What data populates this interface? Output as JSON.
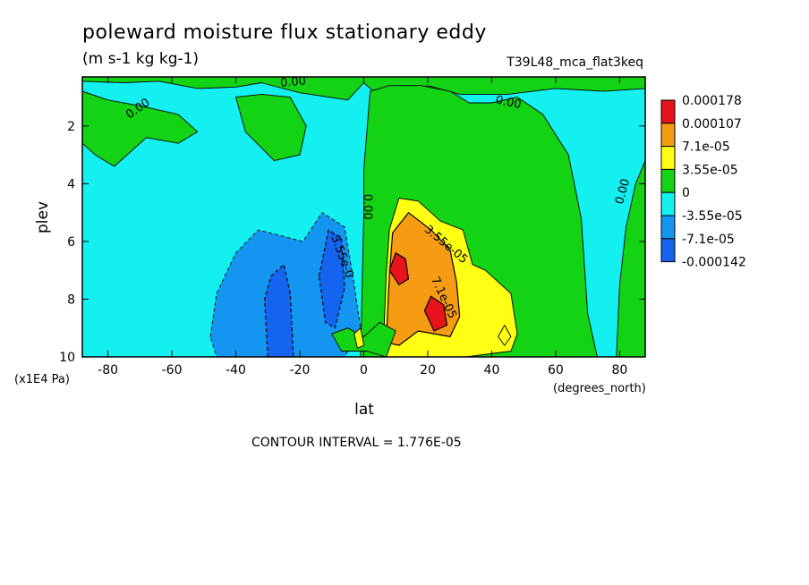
{
  "title": "poleward moisture flux stationary eddy",
  "units": "(m s-1 kg kg-1)",
  "run_label": "T39L48_mca_flat3keq",
  "contour_interval_text": "CONTOUR INTERVAL = 1.776E-05",
  "chart_data": {
    "type": "contour",
    "xlabel": "lat",
    "xunits": "(degrees_north)",
    "ylabel": "plev",
    "yunits": "(x1E4 Pa)",
    "xlim": [
      -88,
      88
    ],
    "ylim": [
      0.3,
      10
    ],
    "y_inverted": true,
    "xticks": [
      -80,
      -60,
      -40,
      -20,
      0,
      20,
      40,
      60,
      80
    ],
    "xtick_labels": [
      "-80",
      "-60",
      "-40",
      "-20",
      "0",
      "20",
      "40",
      "60",
      "80"
    ],
    "yticks": [
      2,
      4,
      6,
      8,
      10
    ],
    "ytick_labels": [
      "2",
      "4",
      "6",
      "8",
      "10"
    ],
    "colorbar": {
      "labels": [
        "0.000178",
        "0.000107",
        "7.1e-05",
        "3.55e-05",
        "0",
        "-3.55e-05",
        "-7.1e-05",
        "-0.000142"
      ],
      "colors": [
        "#e8141b",
        "#f59c14",
        "#ffff14",
        "#14d214",
        "#14f0f0",
        "#1496f0",
        "#1464f0"
      ]
    },
    "contour_labels": [
      {
        "text": "0.00",
        "x": -22,
        "y": 0.6,
        "angle": -5
      },
      {
        "text": "0.00",
        "x": -70,
        "y": 1.5,
        "angle": -35
      },
      {
        "text": "0.00",
        "x": 45,
        "y": 1.3,
        "angle": 12
      },
      {
        "text": "0.00",
        "x": 82,
        "y": 4.3,
        "angle": -75
      },
      {
        "text": "0.00",
        "x": 0,
        "y": 4.8,
        "angle": 90
      },
      {
        "text": "-3.55e-0",
        "x": -8,
        "y": 6.5,
        "angle": 70
      },
      {
        "text": "3.55e-05",
        "x": 25,
        "y": 6.2,
        "angle": 40
      },
      {
        "text": "7.1e-05",
        "x": 24,
        "y": 8.0,
        "angle": 65
      }
    ],
    "regions": [
      {
        "level": 0,
        "color": "#14d214",
        "points": [
          [
            -88,
            0.3
          ],
          [
            88,
            0.3
          ],
          [
            88,
            0.7
          ],
          [
            75,
            0.8
          ],
          [
            60,
            0.7
          ],
          [
            45,
            0.9
          ],
          [
            30,
            0.9
          ],
          [
            20,
            0.6
          ],
          [
            12,
            0.9
          ],
          [
            3,
            0.8
          ],
          [
            0,
            0.5
          ],
          [
            -5,
            1.1
          ],
          [
            -20,
            0.85
          ],
          [
            -32,
            0.5
          ],
          [
            -40,
            0.65
          ],
          [
            -52,
            0.7
          ],
          [
            -64,
            0.45
          ],
          [
            -75,
            0.5
          ],
          [
            -88,
            0.45
          ]
        ]
      },
      {
        "level": 0,
        "color": "#14d214",
        "points": [
          [
            -88,
            0.8
          ],
          [
            -80,
            1.1
          ],
          [
            -70,
            1.3
          ],
          [
            -58,
            1.6
          ],
          [
            -52,
            2.2
          ],
          [
            -58,
            2.6
          ],
          [
            -68,
            2.4
          ],
          [
            -78,
            3.4
          ],
          [
            -84,
            3.0
          ],
          [
            -88,
            2.6
          ]
        ]
      },
      {
        "level": 0,
        "color": "#14d214",
        "points": [
          [
            -40,
            1.0
          ],
          [
            -32,
            0.9
          ],
          [
            -23,
            1.0
          ],
          [
            -18,
            2.0
          ],
          [
            -20,
            3.0
          ],
          [
            -28,
            3.2
          ],
          [
            -37,
            2.2
          ]
        ]
      },
      {
        "level": 0,
        "color": "#14d214",
        "points": [
          [
            -1,
            10
          ],
          [
            0,
            5.0
          ],
          [
            0,
            3.5
          ],
          [
            2,
            0.8
          ],
          [
            8,
            0.6
          ],
          [
            18,
            0.6
          ],
          [
            27,
            0.8
          ],
          [
            33,
            1.2
          ],
          [
            40,
            1.2
          ],
          [
            48,
            1.0
          ],
          [
            56,
            1.6
          ],
          [
            64,
            3.0
          ],
          [
            68,
            5.2
          ],
          [
            70,
            8.5
          ],
          [
            73,
            10
          ]
        ]
      },
      {
        "level": 0,
        "color": "#14d214",
        "points": [
          [
            79,
            10
          ],
          [
            80,
            7.5
          ],
          [
            82,
            5.5
          ],
          [
            85,
            4.0
          ],
          [
            88,
            3.2
          ],
          [
            88,
            10
          ]
        ]
      },
      {
        "level": 1,
        "color": "#ffff14",
        "points": [
          [
            6,
            10
          ],
          [
            7,
            7.2
          ],
          [
            8,
            5.6
          ],
          [
            11,
            4.5
          ],
          [
            17,
            4.6
          ],
          [
            24,
            5.3
          ],
          [
            31,
            5.6
          ],
          [
            34,
            6.8
          ],
          [
            38,
            7.0
          ],
          [
            46,
            7.8
          ],
          [
            48,
            9.2
          ],
          [
            46,
            9.8
          ],
          [
            32,
            10
          ]
        ]
      },
      {
        "level": 2,
        "color": "#f59c14",
        "points": [
          [
            7,
            9.5
          ],
          [
            8,
            7.2
          ],
          [
            9,
            5.7
          ],
          [
            14,
            5.0
          ],
          [
            21,
            5.6
          ],
          [
            27,
            6.3
          ],
          [
            29,
            7.4
          ],
          [
            30,
            8.6
          ],
          [
            27,
            9.3
          ],
          [
            17,
            9.1
          ],
          [
            11,
            9.6
          ]
        ]
      },
      {
        "level": 3,
        "color": "#e8141b",
        "points": [
          [
            8,
            7.0
          ],
          [
            10,
            6.4
          ],
          [
            13,
            6.6
          ],
          [
            14,
            7.3
          ],
          [
            11,
            7.5
          ]
        ]
      },
      {
        "level": 3,
        "color": "#e8141b",
        "points": [
          [
            19,
            8.4
          ],
          [
            21,
            7.9
          ],
          [
            25,
            8.2
          ],
          [
            26,
            8.9
          ],
          [
            22,
            9.1
          ]
        ]
      },
      {
        "level": 1,
        "color": "#ffff14",
        "points": [
          [
            42,
            9.3
          ],
          [
            44,
            8.9
          ],
          [
            46,
            9.3
          ],
          [
            44,
            9.6
          ]
        ]
      },
      {
        "level": -1,
        "color": "#1496f0",
        "points": [
          [
            -48,
            9.3
          ],
          [
            -46,
            7.8
          ],
          [
            -40,
            6.4
          ],
          [
            -33,
            5.6
          ],
          [
            -26,
            5.8
          ],
          [
            -19,
            6.0
          ],
          [
            -13,
            5.0
          ],
          [
            -6,
            5.5
          ],
          [
            -3,
            7.5
          ],
          [
            -1,
            9.0
          ],
          [
            -6,
            10
          ],
          [
            -46,
            10
          ]
        ]
      },
      {
        "level": -2,
        "color": "#1464f0",
        "points": [
          [
            -30,
            10
          ],
          [
            -31,
            8.0
          ],
          [
            -29,
            7.2
          ],
          [
            -25,
            6.8
          ],
          [
            -23,
            7.8
          ],
          [
            -22,
            10
          ]
        ]
      },
      {
        "level": -2,
        "color": "#1464f0",
        "points": [
          [
            -14,
            7.2
          ],
          [
            -11,
            5.6
          ],
          [
            -7,
            5.9
          ],
          [
            -6,
            7.6
          ],
          [
            -9,
            9.0
          ],
          [
            -12,
            8.8
          ]
        ]
      },
      {
        "level": 0,
        "color": "#14d214",
        "points": [
          [
            -10,
            9.2
          ],
          [
            -5,
            9.0
          ],
          [
            0,
            9.3
          ],
          [
            5,
            8.8
          ],
          [
            10,
            9.1
          ],
          [
            7,
            10
          ],
          [
            1,
            9.8
          ],
          [
            -7,
            9.8
          ]
        ]
      },
      {
        "level": 1,
        "color": "#ffff14",
        "points": [
          [
            -3,
            9.2
          ],
          [
            -1,
            9.0
          ],
          [
            0,
            9.6
          ],
          [
            -2,
            9.7
          ]
        ]
      }
    ]
  }
}
